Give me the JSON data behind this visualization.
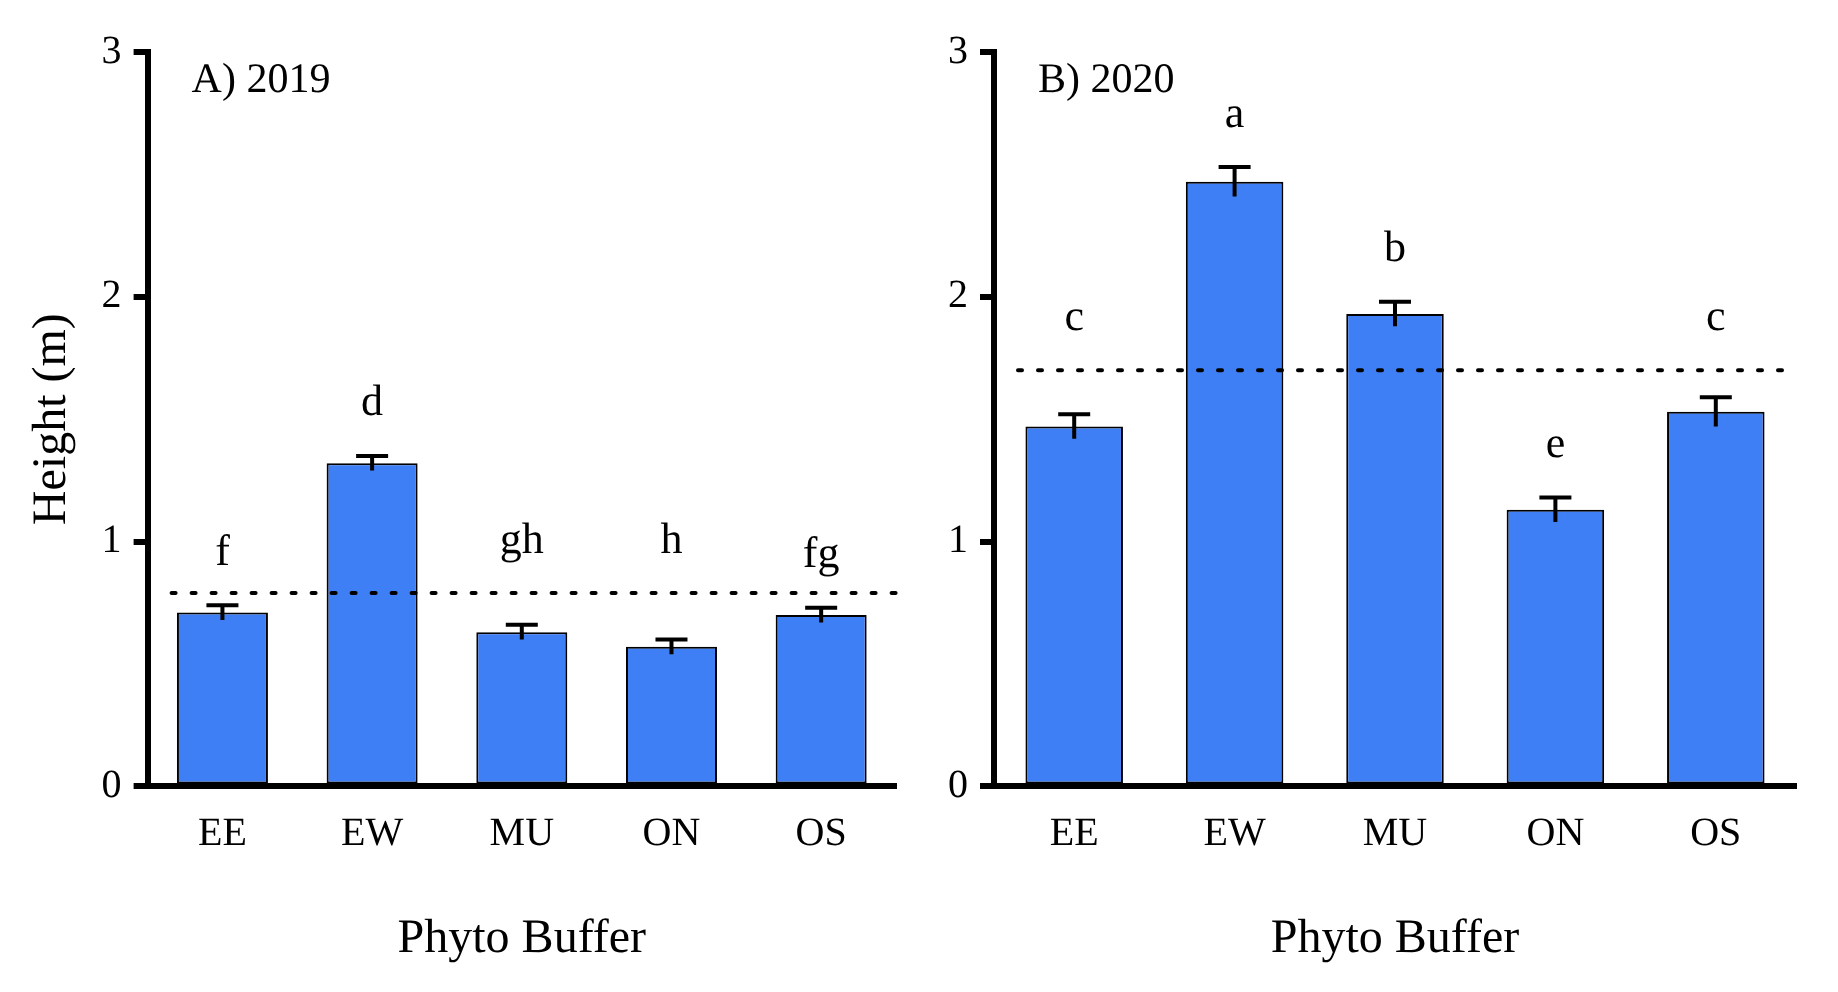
{
  "chart_data": [
    {
      "type": "bar",
      "title": "A) 2019",
      "xlabel": "Phyto Buffer",
      "ylabel": "Height (m)",
      "categories": [
        "EE",
        "EW",
        "MU",
        "ON",
        "OS"
      ],
      "values": [
        0.71,
        1.32,
        0.63,
        0.57,
        0.7
      ],
      "errors": [
        0.03,
        0.03,
        0.03,
        0.03,
        0.03
      ],
      "color": "#3f7ff5",
      "ylim": [
        0,
        3
      ],
      "yticks": [
        0,
        1,
        2,
        3
      ],
      "grid": false,
      "legend": false,
      "ref_lines": [
        {
          "axis": "y",
          "value": 0.79,
          "label": null,
          "color": "#000000",
          "line_style": "dotted"
        }
      ],
      "annotations": [
        "f",
        "d",
        "gh",
        "h",
        "fg"
      ]
    },
    {
      "type": "bar",
      "title": "B) 2020",
      "xlabel": "Phyto Buffer",
      "categories": [
        "EE",
        "EW",
        "MU",
        "ON",
        "OS"
      ],
      "values": [
        1.47,
        2.47,
        1.93,
        1.13,
        1.53
      ],
      "errors": [
        0.05,
        0.06,
        0.05,
        0.05,
        0.06
      ],
      "color": "#3f7ff5",
      "ylim": [
        0,
        3
      ],
      "yticks": [
        0,
        1,
        2,
        3
      ],
      "grid": false,
      "legend": false,
      "ref_lines": [
        {
          "axis": "y",
          "value": 1.7,
          "label": null,
          "color": "#000000",
          "line_style": "dotted"
        }
      ],
      "annotations": [
        "c",
        "a",
        "b",
        "e",
        "c"
      ]
    }
  ]
}
